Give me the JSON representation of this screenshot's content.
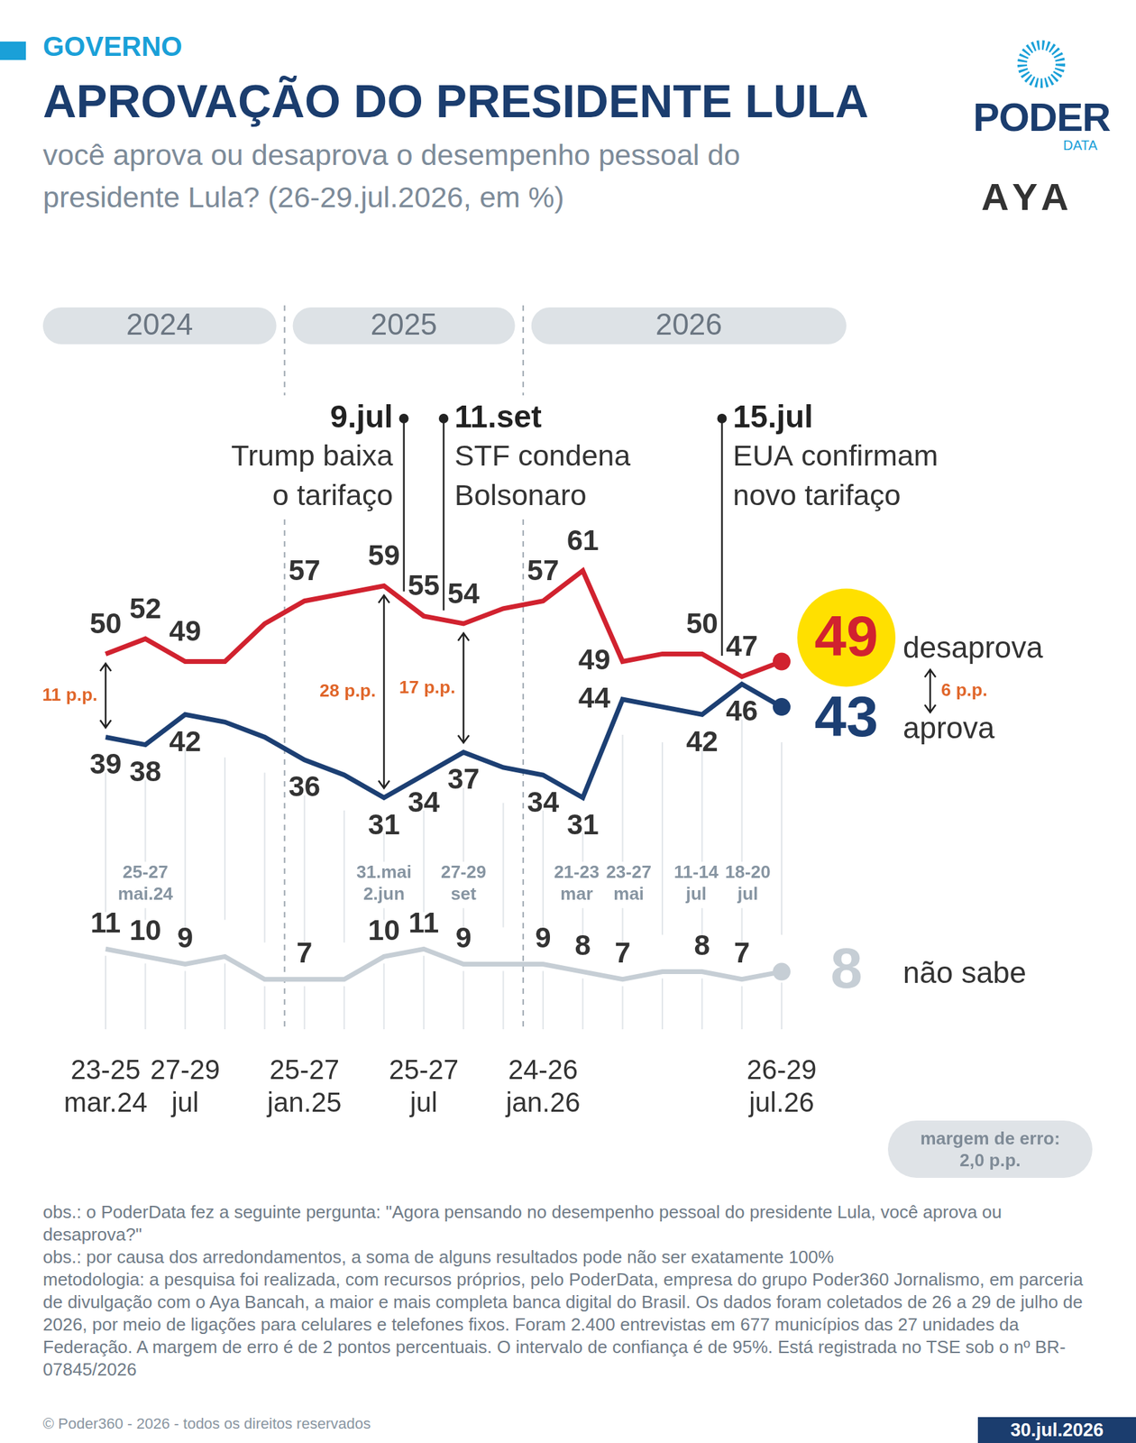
{
  "chart_data": {
    "type": "line",
    "kicker": "GOVERNO",
    "title": "APROVAÇÃO DO PRESIDENTE LULA",
    "subtitle": "você aprova ou desaprova o desempenho pessoal do presidente Lula? (26-29.jul.2026, em %)",
    "logos": [
      "PODER",
      "DATA",
      "AYA"
    ],
    "categories": [
      "23-25 mar.24",
      null,
      "27-29 jul",
      null,
      null,
      "25-27 jan.25",
      null,
      null,
      "25-27 jul",
      null,
      null,
      "24-26 jan.26",
      null,
      null,
      null,
      null,
      null,
      "26-29 jul.26"
    ],
    "categories_upper": [
      null,
      "25-27 mai.24",
      null,
      null,
      null,
      null,
      null,
      "31.mai 2.jun",
      null,
      "27-29 set",
      null,
      null,
      "21-23 mar",
      "23-27 mai",
      null,
      "11-14 jul",
      "18-20 jul",
      null
    ],
    "series": [
      {
        "name": "desaprova",
        "color": "#d1222f",
        "values": [
          50,
          52,
          49,
          49,
          54,
          57,
          58,
          59,
          55,
          54,
          56,
          57,
          61,
          49,
          50,
          50,
          47,
          49
        ],
        "value_labels": [
          "50",
          "52",
          "49",
          null,
          null,
          "57",
          null,
          "59",
          "55",
          "54",
          null,
          "57",
          "61",
          "49",
          null,
          "50",
          "47",
          "49"
        ]
      },
      {
        "name": "aprova",
        "color": "#1c3f73",
        "values": [
          39,
          38,
          42,
          41,
          39,
          36,
          34,
          31,
          34,
          37,
          35,
          34,
          31,
          44,
          43,
          42,
          46,
          43
        ],
        "value_labels": [
          "39",
          "38",
          "42",
          null,
          null,
          "36",
          null,
          "31",
          "34",
          "37",
          null,
          "34",
          "31",
          "44",
          null,
          "42",
          "46",
          "43"
        ]
      },
      {
        "name": "não sabe",
        "color": "#c6ced5",
        "values": [
          11,
          10,
          9,
          10,
          7,
          7,
          7,
          10,
          11,
          9,
          9,
          9,
          8,
          7,
          8,
          8,
          7,
          8
        ],
        "value_labels": [
          "11",
          "10",
          "9",
          null,
          null,
          "7",
          null,
          "10",
          "11",
          "9",
          null,
          "9",
          "8",
          "7",
          null,
          "8",
          "7",
          "8"
        ]
      }
    ],
    "ylim": [
      4,
      64
    ],
    "yticks": [],
    "tick_labels": "x",
    "grid": false,
    "data_labels": true,
    "year_bands": [
      {
        "label": "2024",
        "from_index": 0,
        "to_index": 4
      },
      {
        "label": "2025",
        "from_index": 5,
        "to_index": 10
      },
      {
        "label": "2026",
        "from_index": 11,
        "to_index": 17
      }
    ],
    "events": [
      {
        "date": "9.jul",
        "text": "Trump baixa o tarifaço",
        "after_index": 7
      },
      {
        "date": "11.set",
        "text": "STF condena Bolsonaro",
        "after_index": 8
      },
      {
        "date": "15.jul",
        "text": "EUA confirmam novo tarifaço",
        "after_index": 15
      }
    ],
    "gaps": [
      {
        "index": 0,
        "value": 11,
        "label": "11 p.p."
      },
      {
        "index": 7,
        "value": 28,
        "label": "28 p.p."
      },
      {
        "index": 9,
        "value": 17,
        "label": "17 p.p."
      },
      {
        "index": 17,
        "value": 6,
        "label": "6 p.p."
      }
    ],
    "margin_of_error": {
      "title": "margem de erro:",
      "label": "2,0 p.p."
    },
    "notes": [
      "obs.: o PoderData fez a seguinte pergunta: \"Agora pensando no desempenho pessoal do presidente Lula, você aprova ou desaprova?\"",
      "obs.: por causa dos arredondamentos, a soma de alguns resultados pode não ser exatamente 100%",
      "metodologia: a pesquisa foi realizada, com recursos próprios, pelo PoderData, empresa do grupo Poder360 Jornalismo, em parceria de divulgação com o Aya Bancah, a maior e mais completa banca digital do Brasil. Os dados foram coletados de 26 a 29 de julho de 2026, por meio de ligações para celulares e telefones fixos. Foram 2.400 entrevistas em 677 municípios das 27 unidades da Federação. A margem de erro é de 2 pontos percentuais. O intervalo de confiança é de 95%. Está registrada no TSE sob o nº BR-07845/2026"
    ],
    "copyright": "© Poder360 - 2026 - todos os direitos reservados",
    "date": "30.jul.2026"
  }
}
